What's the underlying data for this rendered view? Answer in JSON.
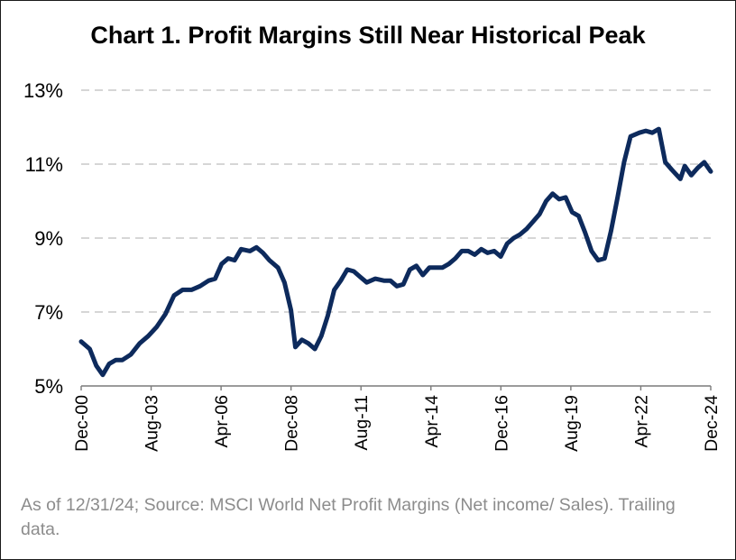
{
  "chart_data": {
    "type": "line",
    "title": "Chart 1. Profit Margins Still Near Historical Peak",
    "xlabel": "",
    "ylabel": "",
    "ylim": [
      5,
      13
    ],
    "yticks": [
      "5%",
      "7%",
      "9%",
      "11%",
      "13%"
    ],
    "xticks": [
      "Dec-00",
      "Aug-03",
      "Apr-06",
      "Dec-08",
      "Aug-11",
      "Apr-14",
      "Dec-16",
      "Aug-19",
      "Apr-22",
      "Dec-24"
    ],
    "grid": true,
    "legend": "none",
    "line_color": "#0d2a5c",
    "series": [
      {
        "values": [
          [
            2000.92,
            6.2
          ],
          [
            2001.25,
            6.0
          ],
          [
            2001.5,
            5.55
          ],
          [
            2001.75,
            5.3
          ],
          [
            2002.0,
            5.6
          ],
          [
            2002.25,
            5.7
          ],
          [
            2002.5,
            5.7
          ],
          [
            2002.83,
            5.85
          ],
          [
            2003.17,
            6.15
          ],
          [
            2003.5,
            6.35
          ],
          [
            2003.83,
            6.6
          ],
          [
            2004.17,
            6.95
          ],
          [
            2004.5,
            7.45
          ],
          [
            2004.83,
            7.6
          ],
          [
            2005.17,
            7.6
          ],
          [
            2005.5,
            7.7
          ],
          [
            2005.83,
            7.85
          ],
          [
            2006.08,
            7.9
          ],
          [
            2006.33,
            8.3
          ],
          [
            2006.58,
            8.45
          ],
          [
            2006.83,
            8.4
          ],
          [
            2007.08,
            8.7
          ],
          [
            2007.42,
            8.65
          ],
          [
            2007.67,
            8.75
          ],
          [
            2007.92,
            8.6
          ],
          [
            2008.17,
            8.4
          ],
          [
            2008.5,
            8.2
          ],
          [
            2008.75,
            7.8
          ],
          [
            2009.0,
            7.05
          ],
          [
            2009.17,
            6.05
          ],
          [
            2009.42,
            6.25
          ],
          [
            2009.67,
            6.15
          ],
          [
            2009.92,
            6.0
          ],
          [
            2010.17,
            6.35
          ],
          [
            2010.42,
            6.9
          ],
          [
            2010.67,
            7.6
          ],
          [
            2010.92,
            7.85
          ],
          [
            2011.17,
            8.15
          ],
          [
            2011.42,
            8.1
          ],
          [
            2011.67,
            7.95
          ],
          [
            2011.92,
            7.8
          ],
          [
            2012.25,
            7.9
          ],
          [
            2012.58,
            7.85
          ],
          [
            2012.83,
            7.85
          ],
          [
            2013.08,
            7.7
          ],
          [
            2013.33,
            7.75
          ],
          [
            2013.58,
            8.15
          ],
          [
            2013.83,
            8.25
          ],
          [
            2014.08,
            8.0
          ],
          [
            2014.33,
            8.2
          ],
          [
            2014.58,
            8.2
          ],
          [
            2014.83,
            8.2
          ],
          [
            2015.08,
            8.3
          ],
          [
            2015.33,
            8.45
          ],
          [
            2015.58,
            8.65
          ],
          [
            2015.83,
            8.65
          ],
          [
            2016.08,
            8.55
          ],
          [
            2016.33,
            8.7
          ],
          [
            2016.58,
            8.6
          ],
          [
            2016.83,
            8.65
          ],
          [
            2017.08,
            8.5
          ],
          [
            2017.33,
            8.85
          ],
          [
            2017.58,
            9.0
          ],
          [
            2017.83,
            9.1
          ],
          [
            2018.08,
            9.25
          ],
          [
            2018.33,
            9.45
          ],
          [
            2018.58,
            9.65
          ],
          [
            2018.83,
            10.0
          ],
          [
            2019.08,
            10.2
          ],
          [
            2019.33,
            10.05
          ],
          [
            2019.58,
            10.1
          ],
          [
            2019.83,
            9.7
          ],
          [
            2020.08,
            9.6
          ],
          [
            2020.33,
            9.15
          ],
          [
            2020.58,
            8.65
          ],
          [
            2020.83,
            8.4
          ],
          [
            2021.08,
            8.45
          ],
          [
            2021.33,
            9.2
          ],
          [
            2021.58,
            10.1
          ],
          [
            2021.83,
            11.05
          ],
          [
            2022.08,
            11.75
          ],
          [
            2022.42,
            11.85
          ],
          [
            2022.67,
            11.9
          ],
          [
            2022.92,
            11.85
          ],
          [
            2023.17,
            11.95
          ],
          [
            2023.42,
            11.05
          ],
          [
            2023.67,
            10.85
          ],
          [
            2024.0,
            10.6
          ],
          [
            2024.17,
            10.95
          ],
          [
            2024.42,
            10.7
          ],
          [
            2024.67,
            10.9
          ],
          [
            2024.92,
            11.05
          ],
          [
            2025.17,
            10.8
          ]
        ]
      }
    ]
  },
  "footnote": "As of 12/31/24; Source: MSCI World Net Profit Margins (Net income/ Sales). Trailing data."
}
